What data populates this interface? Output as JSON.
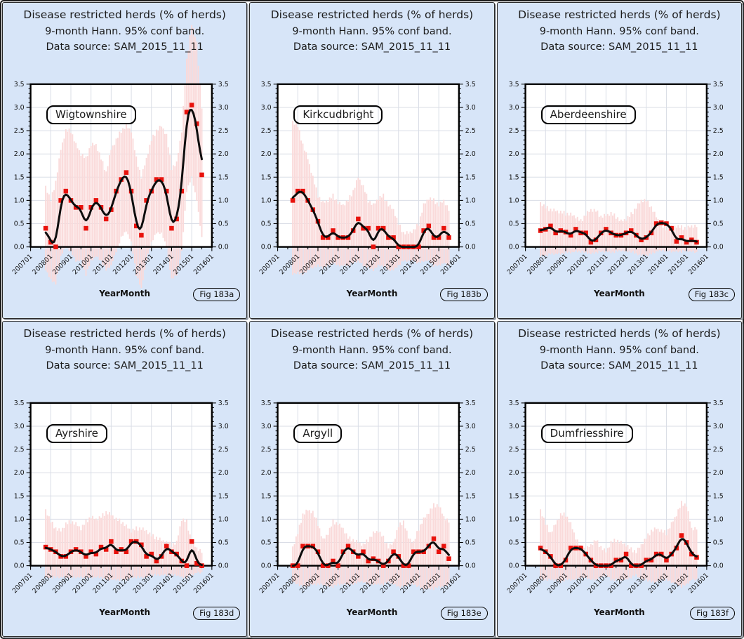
{
  "colors": {
    "panel_bg": "#d7e5f8",
    "plot_bg": "#ffffff",
    "band": "#fadada",
    "point": "#e8120c",
    "line": "#0d0d0d",
    "grid": "#d9dde6",
    "frame": "#000000",
    "text": "#1b1b1b"
  },
  "chart_data": {
    "type": "line",
    "title": "Disease restricted herds (% of herds)",
    "subtitle": "9-month Hann. 95% conf band.",
    "source_note": "Data source: SAM_2015_11_11",
    "xlabel": "YearMonth",
    "ylim": [
      0,
      3.5
    ],
    "grid": "on",
    "y_ticks": [
      "0.0",
      "0.5",
      "1.0",
      "1.5",
      "2.0",
      "2.5",
      "3.0",
      "3.5"
    ],
    "x_major_ticks": [
      "200701",
      "200801",
      "200901",
      "201001",
      "201101",
      "201201",
      "201301",
      "201401",
      "201501",
      "201601"
    ],
    "x": [
      "200710",
      "200801",
      "200804",
      "200807",
      "200810",
      "200901",
      "200904",
      "200907",
      "200910",
      "201001",
      "201004",
      "201007",
      "201010",
      "201101",
      "201104",
      "201107",
      "201110",
      "201201",
      "201204",
      "201207",
      "201210",
      "201301",
      "201304",
      "201307",
      "201310",
      "201401",
      "201404",
      "201407",
      "201410",
      "201501",
      "201504",
      "201507"
    ],
    "panels": [
      {
        "region": "Wigtownshire",
        "fig_label": "Fig 183a",
        "values": [
          0.4,
          0.1,
          0.0,
          1.0,
          1.2,
          1.0,
          0.85,
          0.85,
          0.4,
          0.85,
          1.0,
          0.85,
          0.6,
          0.8,
          1.2,
          1.45,
          1.6,
          1.2,
          0.45,
          0.25,
          1.0,
          1.2,
          1.45,
          1.45,
          1.2,
          0.4,
          0.6,
          1.2,
          2.9,
          3.05,
          2.65,
          1.55
        ],
        "band_upper": [
          1.3,
          1.0,
          1.4,
          2.1,
          2.5,
          2.5,
          2.2,
          2.0,
          1.9,
          2.2,
          2.2,
          1.9,
          1.6,
          2.1,
          2.3,
          2.5,
          2.6,
          2.5,
          1.9,
          1.5,
          1.9,
          2.3,
          2.5,
          2.6,
          2.4,
          1.7,
          1.8,
          2.5,
          4.0,
          4.8,
          4.4,
          3.0
        ],
        "band_lower": [
          -0.5,
          -0.7,
          -0.8,
          -0.2,
          0.0,
          -0.1,
          -0.3,
          -0.3,
          -0.6,
          -0.3,
          -0.2,
          -0.3,
          -0.5,
          -0.4,
          -0.1,
          0.2,
          0.35,
          0.1,
          -0.6,
          -0.9,
          -0.3,
          0.1,
          0.3,
          0.3,
          0.0,
          -0.7,
          -0.6,
          -0.1,
          1.2,
          1.5,
          1.0,
          0.2
        ]
      },
      {
        "region": "Kirkcudbright",
        "fig_label": "Fig 183b",
        "values": [
          1.0,
          1.2,
          1.2,
          1.0,
          0.8,
          0.55,
          0.2,
          0.2,
          0.35,
          0.2,
          0.2,
          0.2,
          0.35,
          0.6,
          0.4,
          0.4,
          0.0,
          0.4,
          0.4,
          0.2,
          0.2,
          0.0,
          0.0,
          0.0,
          0.0,
          0.0,
          0.35,
          0.45,
          0.2,
          0.2,
          0.4,
          0.2
        ],
        "band_upper": [
          2.7,
          2.6,
          2.2,
          1.9,
          1.5,
          1.1,
          0.95,
          1.0,
          1.1,
          0.95,
          0.9,
          1.0,
          1.2,
          1.5,
          1.3,
          1.0,
          0.9,
          1.05,
          1.1,
          0.9,
          0.8,
          0.5,
          0.3,
          0.3,
          0.35,
          0.5,
          0.9,
          1.05,
          1.0,
          0.9,
          1.0,
          0.8
        ],
        "band_lower": [
          -0.6,
          -0.55,
          -0.6,
          -0.5,
          -0.45,
          -0.4,
          -0.45,
          -0.4,
          -0.35,
          -0.4,
          -0.4,
          -0.4,
          -0.35,
          -0.3,
          -0.4,
          -0.45,
          -0.5,
          -0.4,
          -0.4,
          -0.5,
          -0.5,
          -0.4,
          -0.3,
          -0.3,
          -0.3,
          -0.35,
          -0.3,
          -0.3,
          -0.4,
          -0.4,
          -0.35,
          -0.4
        ]
      },
      {
        "region": "Aberdeenshire",
        "fig_label": "Fig 183c",
        "values": [
          0.35,
          0.38,
          0.45,
          0.3,
          0.35,
          0.32,
          0.25,
          0.38,
          0.3,
          0.3,
          0.1,
          0.15,
          0.3,
          0.38,
          0.3,
          0.25,
          0.25,
          0.3,
          0.35,
          0.25,
          0.15,
          0.2,
          0.3,
          0.5,
          0.52,
          0.5,
          0.4,
          0.12,
          0.2,
          0.1,
          0.15,
          0.1
        ],
        "band_upper": [
          0.95,
          0.85,
          0.8,
          0.78,
          0.75,
          0.72,
          0.7,
          0.65,
          0.55,
          0.7,
          0.8,
          0.78,
          0.65,
          0.68,
          0.72,
          0.65,
          0.55,
          0.6,
          0.7,
          0.85,
          1.0,
          1.0,
          0.85,
          0.65,
          0.45,
          0.4,
          0.42,
          0.45,
          0.42,
          0.4,
          0.45,
          0.45
        ],
        "band_lower": [
          -0.2,
          -0.18,
          -0.15,
          -0.15,
          -0.15,
          -0.12,
          -0.12,
          -0.1,
          -0.1,
          -0.12,
          -0.15,
          -0.12,
          -0.1,
          -0.1,
          -0.12,
          -0.1,
          -0.08,
          -0.1,
          -0.1,
          -0.15,
          -0.18,
          -0.18,
          -0.15,
          -0.1,
          -0.08,
          -0.08,
          -0.1,
          -0.1,
          -0.1,
          -0.08,
          -0.1,
          -0.12
        ]
      },
      {
        "region": "Ayrshire",
        "fig_label": "Fig 183d",
        "values": [
          0.4,
          0.35,
          0.3,
          0.2,
          0.2,
          0.3,
          0.35,
          0.3,
          0.2,
          0.3,
          0.25,
          0.4,
          0.35,
          0.52,
          0.3,
          0.35,
          0.3,
          0.52,
          0.52,
          0.45,
          0.2,
          0.25,
          0.1,
          0.2,
          0.42,
          0.3,
          0.25,
          0.1,
          0.0,
          0.52,
          0.05,
          0.0
        ],
        "band_upper": [
          1.2,
          0.95,
          0.8,
          0.75,
          0.9,
          0.95,
          0.9,
          0.8,
          0.95,
          1.05,
          1.0,
          1.05,
          1.15,
          1.1,
          1.0,
          0.95,
          0.85,
          0.75,
          0.8,
          0.8,
          0.75,
          0.65,
          0.6,
          0.55,
          0.5,
          0.45,
          0.5,
          1.0,
          0.95,
          0.5,
          0.38,
          0.3
        ],
        "band_lower": [
          -0.25,
          -0.25,
          -0.25,
          -0.25,
          -0.25,
          -0.25,
          -0.25,
          -0.25,
          -0.25,
          -0.25,
          -0.25,
          -0.25,
          -0.3,
          -0.3,
          -0.3,
          -0.3,
          -0.3,
          -0.25,
          -0.25,
          -0.25,
          -0.25,
          -0.2,
          -0.2,
          -0.2,
          -0.2,
          -0.2,
          -0.2,
          -0.25,
          -0.25,
          -0.2,
          -0.15,
          -0.15
        ]
      },
      {
        "region": "Argyll",
        "fig_label": "Fig 183e",
        "values": [
          0.0,
          0.0,
          0.42,
          0.42,
          0.42,
          0.3,
          0.0,
          0.0,
          0.1,
          0.0,
          0.3,
          0.42,
          0.3,
          0.2,
          0.3,
          0.1,
          0.15,
          0.1,
          0.0,
          0.1,
          0.3,
          0.2,
          0.0,
          0.0,
          0.3,
          0.3,
          0.3,
          0.42,
          0.58,
          0.3,
          0.42,
          0.15
        ],
        "band_upper": [
          0.4,
          0.7,
          1.1,
          1.2,
          1.15,
          0.9,
          0.55,
          0.7,
          0.95,
          0.9,
          0.8,
          0.6,
          0.55,
          0.5,
          0.45,
          0.55,
          0.7,
          0.75,
          0.6,
          0.4,
          0.5,
          0.85,
          0.95,
          0.6,
          0.5,
          0.8,
          1.0,
          1.15,
          1.3,
          1.3,
          1.05,
          0.95
        ],
        "band_lower": [
          -0.35,
          -0.4,
          -0.45,
          -0.45,
          -0.4,
          -0.4,
          -0.4,
          -0.45,
          -0.45,
          -0.4,
          -0.4,
          -0.4,
          -0.4,
          -0.35,
          -0.35,
          -0.4,
          -0.4,
          -0.4,
          -0.4,
          -0.35,
          -0.4,
          -0.45,
          -0.45,
          -0.4,
          -0.4,
          -0.45,
          -0.5,
          -0.5,
          -0.5,
          -0.45,
          -0.45,
          -0.4
        ]
      },
      {
        "region": "Dumfriesshire",
        "fig_label": "Fig 183f",
        "values": [
          0.38,
          0.3,
          0.2,
          0.0,
          0.0,
          0.12,
          0.38,
          0.38,
          0.38,
          0.25,
          0.12,
          0.0,
          0.0,
          0.0,
          0.0,
          0.12,
          0.12,
          0.25,
          0.0,
          0.0,
          0.0,
          0.12,
          0.12,
          0.25,
          0.25,
          0.12,
          0.25,
          0.38,
          0.65,
          0.5,
          0.25,
          0.18
        ],
        "band_upper": [
          1.2,
          0.9,
          0.7,
          0.9,
          1.1,
          1.1,
          0.9,
          0.6,
          0.4,
          0.35,
          0.45,
          0.55,
          0.4,
          0.3,
          0.5,
          0.55,
          0.5,
          0.45,
          0.35,
          0.3,
          0.45,
          0.6,
          0.75,
          0.8,
          0.75,
          0.7,
          0.9,
          1.1,
          1.35,
          1.3,
          0.8,
          0.8
        ],
        "band_lower": [
          -0.3,
          -0.3,
          -0.3,
          -0.3,
          -0.35,
          -0.3,
          -0.3,
          -0.3,
          -0.25,
          -0.25,
          -0.3,
          -0.3,
          -0.25,
          -0.2,
          -0.3,
          -0.3,
          -0.3,
          -0.3,
          -0.25,
          -0.2,
          -0.3,
          -0.3,
          -0.35,
          -0.35,
          -0.3,
          -0.3,
          -0.35,
          -0.4,
          -0.45,
          -0.4,
          -0.3,
          -0.3
        ]
      }
    ]
  }
}
